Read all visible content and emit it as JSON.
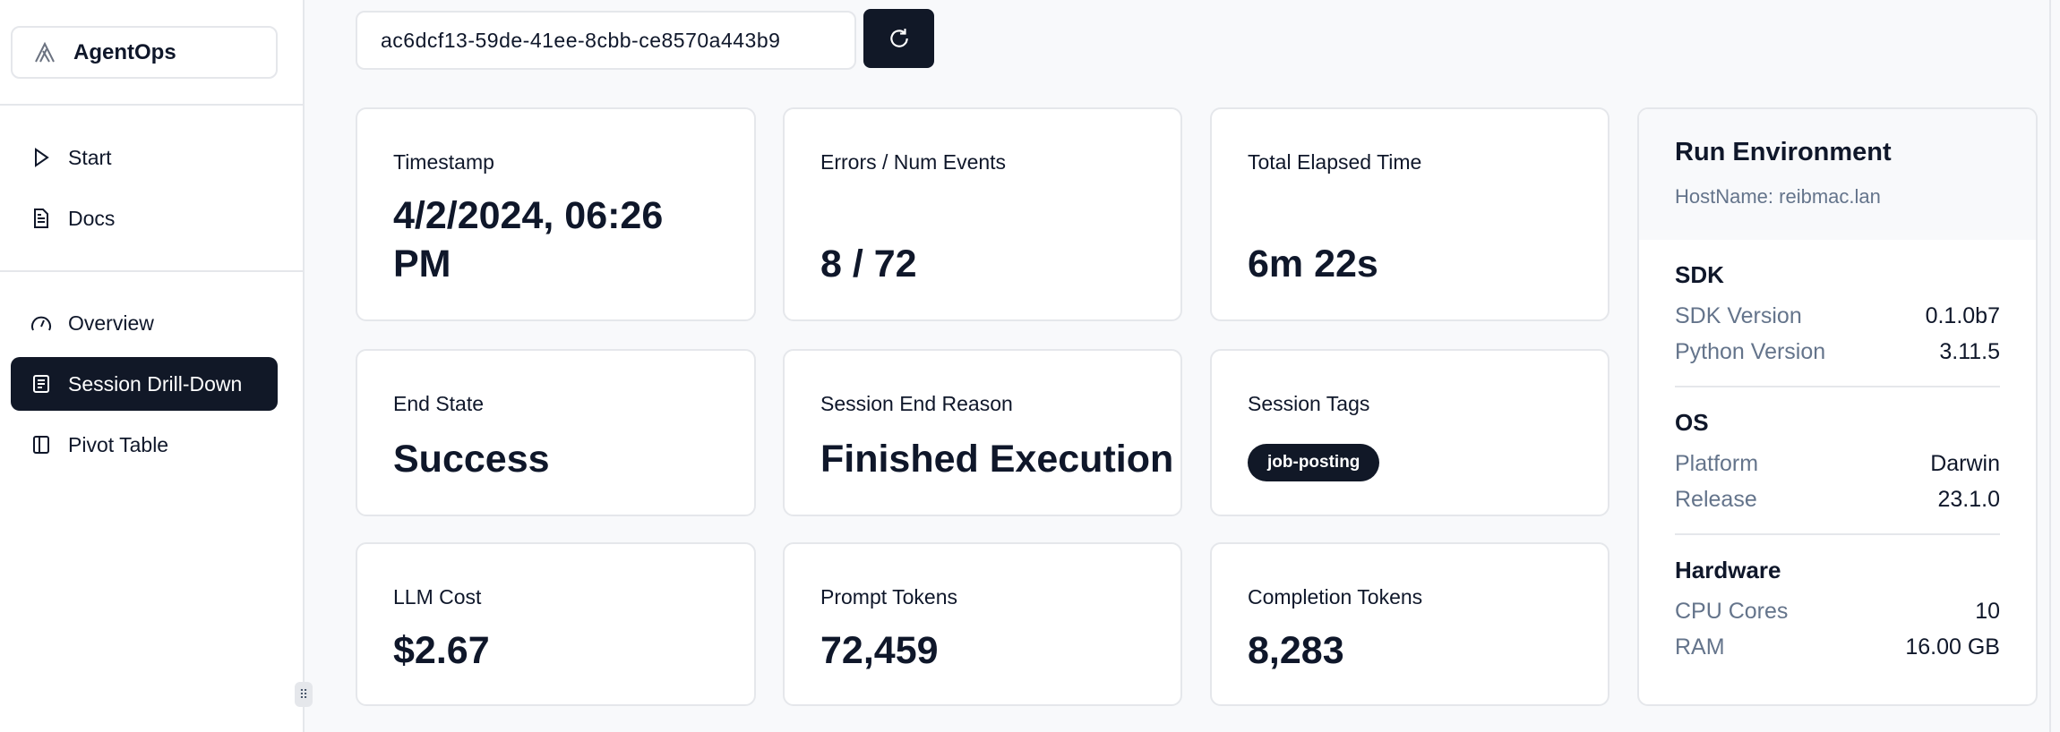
{
  "app": {
    "name": "AgentOps"
  },
  "sidebar": {
    "items": [
      {
        "label": "Start",
        "icon": "play-icon"
      },
      {
        "label": "Docs",
        "icon": "document-icon"
      },
      {
        "label": "Overview",
        "icon": "gauge-icon"
      },
      {
        "label": "Session Drill-Down",
        "icon": "list-icon",
        "active": true
      },
      {
        "label": "Pivot Table",
        "icon": "columns-icon"
      }
    ]
  },
  "session": {
    "id": "ac6dcf13-59de-41ee-8cbb-ce8570a443b9",
    "refresh_icon": "refresh-icon"
  },
  "cards": [
    {
      "label": "Timestamp",
      "value": "4/2/2024, 06:26 PM"
    },
    {
      "label": "Errors / Num Events",
      "value": "8 / 72"
    },
    {
      "label": "Total Elapsed Time",
      "value": "6m 22s"
    },
    {
      "label": "End State",
      "value": "Success"
    },
    {
      "label": "Session End Reason",
      "value": "Finished Execution"
    },
    {
      "label": "Session Tags",
      "tags": [
        "job-posting"
      ]
    },
    {
      "label": "LLM Cost",
      "value": "$2.67"
    },
    {
      "label": "Prompt Tokens",
      "value": "72,459"
    },
    {
      "label": "Completion Tokens",
      "value": "8,283"
    }
  ],
  "env": {
    "title": "Run Environment",
    "host": "HostName: reibmac.lan",
    "sections": [
      {
        "title": "SDK",
        "rows": [
          {
            "k": "SDK Version",
            "v": "0.1.0b7"
          },
          {
            "k": "Python Version",
            "v": "3.11.5"
          }
        ]
      },
      {
        "title": "OS",
        "rows": [
          {
            "k": "Platform",
            "v": "Darwin"
          },
          {
            "k": "Release",
            "v": "23.1.0"
          }
        ]
      },
      {
        "title": "Hardware",
        "rows": [
          {
            "k": "CPU Cores",
            "v": "10"
          },
          {
            "k": "RAM",
            "v": "16.00 GB"
          }
        ]
      }
    ]
  },
  "colors": {
    "primary": "#111827",
    "border": "#e5e7eb",
    "muted": "#64748b",
    "background": "#f8f9fb"
  }
}
